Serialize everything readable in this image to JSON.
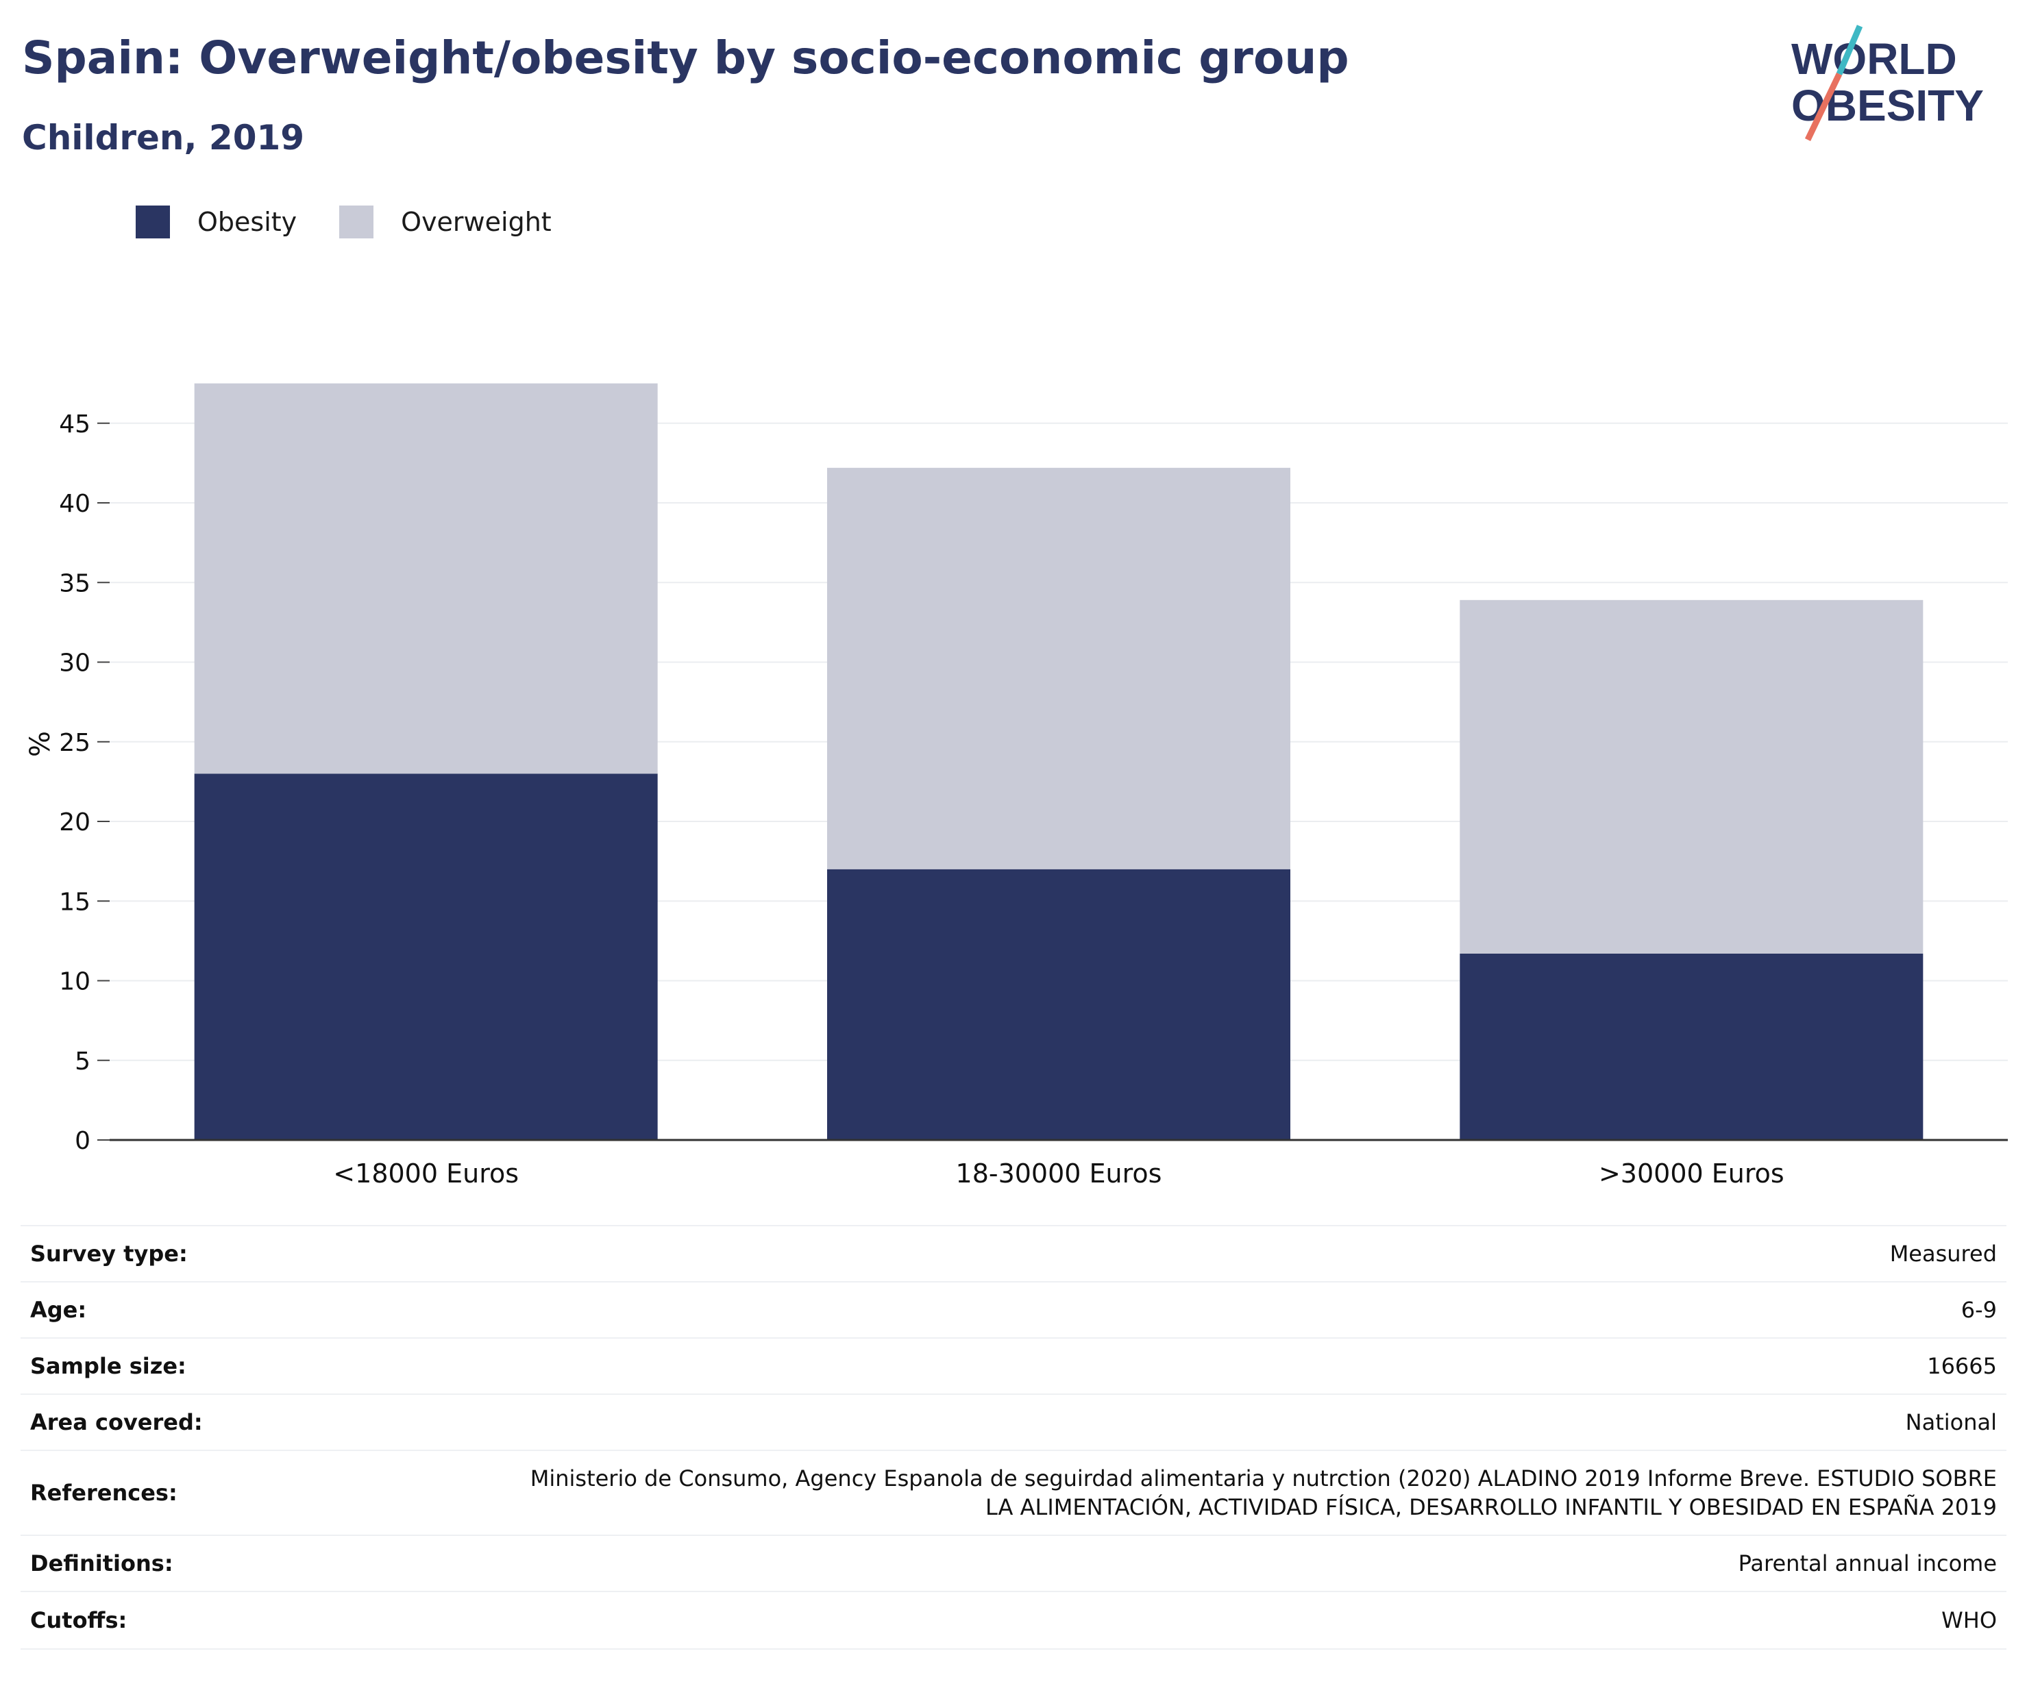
{
  "header": {
    "title": "Spain: Overweight/obesity by socio-economic group",
    "subtitle": "Children, 2019"
  },
  "logo": {
    "line1": "WORLD",
    "line2": "OBESITY",
    "colors": {
      "text": "#2a3562",
      "slash_top": "#3fb8c4",
      "slash_bottom": "#e8715f"
    }
  },
  "legend": [
    {
      "label": "Obesity",
      "color": "#2a3562"
    },
    {
      "label": "Overweight",
      "color": "#c9cbd7"
    }
  ],
  "chart_data": {
    "type": "bar",
    "stacked": true,
    "categories": [
      "<18000 Euros",
      "18-30000 Euros",
      ">30000 Euros"
    ],
    "series": [
      {
        "name": "Obesity",
        "color": "#2a3562",
        "values": [
          23.0,
          17.0,
          11.7
        ]
      },
      {
        "name": "Overweight",
        "color": "#c9cbd7",
        "values": [
          24.5,
          25.2,
          22.2
        ]
      }
    ],
    "ylabel": "%",
    "xlabel": "",
    "ylim": [
      0,
      47.5
    ],
    "yticks": [
      0,
      5,
      10,
      15,
      20,
      25,
      30,
      35,
      40,
      45
    ],
    "grid": true,
    "legend_position": "top-left"
  },
  "details": [
    {
      "key": "Survey type:",
      "value": "Measured"
    },
    {
      "key": "Age:",
      "value": "6-9"
    },
    {
      "key": "Sample size:",
      "value": "16665"
    },
    {
      "key": "Area covered:",
      "value": "National"
    },
    {
      "key": "References:",
      "value": "Ministerio de Consumo, Agency Espanola de seguirdad alimentaria y nutrction (2020) ALADINO 2019 Informe Breve. ESTUDIO SOBRE LA ALIMENTACIÓN, ACTIVIDAD FÍSICA, DESARROLLO INFANTIL Y OBESIDAD EN ESPAÑA 2019"
    },
    {
      "key": "Definitions:",
      "value": "Parental annual income"
    },
    {
      "key": "Cutoffs:",
      "value": "WHO"
    }
  ]
}
